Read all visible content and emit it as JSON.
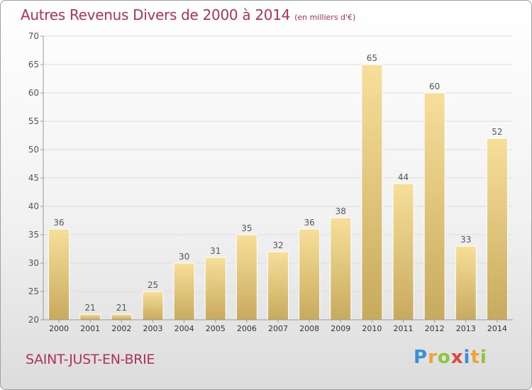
{
  "title": {
    "main": "Autres Revenus Divers de 2000 à 2014",
    "unit": "(en milliers d'€)"
  },
  "footer": {
    "city": "SAINT-JUST-EN-BRIE",
    "brand_letters": [
      "P",
      "r",
      "o",
      "x",
      "i",
      "t",
      "i"
    ],
    "brand_colors": [
      "#3a8fd8",
      "#f2a03a",
      "#8cc63f",
      "#e0473c",
      "#3a8fd8",
      "#f2a03a",
      "#8cc63f"
    ]
  },
  "chart_data": {
    "type": "bar",
    "categories": [
      "2000",
      "2001",
      "2002",
      "2003",
      "2004",
      "2005",
      "2006",
      "2007",
      "2008",
      "2009",
      "2010",
      "2011",
      "2012",
      "2013",
      "2014"
    ],
    "values": [
      36,
      21,
      21,
      25,
      30,
      31,
      35,
      32,
      36,
      38,
      65,
      44,
      60,
      33,
      52
    ],
    "ylim": [
      20,
      70
    ],
    "yticks": [
      20,
      25,
      30,
      35,
      40,
      45,
      50,
      55,
      60,
      65,
      70
    ],
    "grid": true,
    "bar_color_light": "#f7df9a",
    "bar_color_dark": "#c8aa5e",
    "axis_color": "#999999",
    "grid_color": "#dddddd"
  }
}
